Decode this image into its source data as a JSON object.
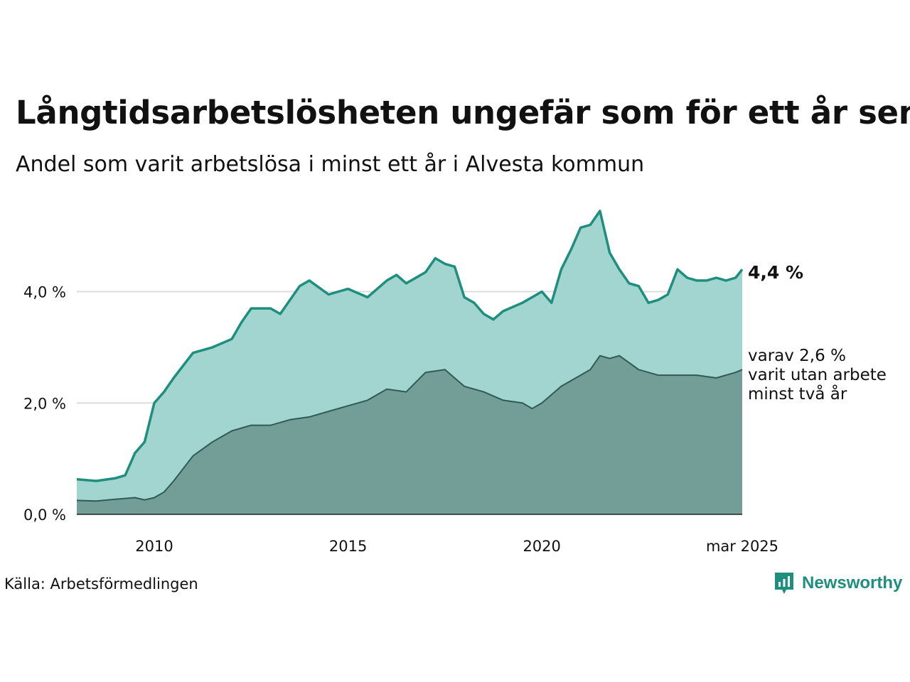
{
  "header": {
    "title": "Långtidsarbetslösheten ungefär som för ett år sen",
    "subtitle": "Andel som varit arbetslösa i minst ett år i Alvesta kommun"
  },
  "footer": {
    "source": "Källa: Arbetsförmedlingen",
    "brand": "Newsworthy"
  },
  "annotations": {
    "latest_value": "4,4 %",
    "sub_note": [
      "varav 2,6 %",
      "varit utan arbete",
      "minst två år"
    ]
  },
  "colors": {
    "one_year_line": "#1e8e7e",
    "one_year_fill": "#a3d5d0",
    "two_year_line": "#2f5b53",
    "two_year_fill": "#729e97",
    "grid": "#dddddd",
    "brand": "#1e8e7e"
  },
  "chart_data": {
    "type": "area",
    "x_range": [
      2008.0,
      2025.17
    ],
    "ylim": [
      0,
      5.5
    ],
    "y_ticks": [
      0,
      2,
      4
    ],
    "y_tick_labels": [
      "0,0 %",
      "2,0 %",
      "4,0 %"
    ],
    "x_ticks": [
      2010,
      2015,
      2020,
      2025.17
    ],
    "x_tick_labels": [
      "2010",
      "2015",
      "2020",
      "mar 2025"
    ],
    "grid": "horizontal",
    "series": [
      {
        "key": "one_year",
        "x": [
          2008.0,
          2008.5,
          2009.0,
          2009.25,
          2009.5,
          2009.75,
          2010.0,
          2010.25,
          2010.5,
          2011.0,
          2011.5,
          2012.0,
          2012.25,
          2012.5,
          2013.0,
          2013.25,
          2013.75,
          2014.0,
          2014.5,
          2015.0,
          2015.5,
          2016.0,
          2016.25,
          2016.5,
          2017.0,
          2017.25,
          2017.5,
          2017.75,
          2018.0,
          2018.25,
          2018.5,
          2018.75,
          2019.0,
          2019.5,
          2020.0,
          2020.25,
          2020.5,
          2020.75,
          2021.0,
          2021.25,
          2021.5,
          2021.75,
          2022.0,
          2022.25,
          2022.5,
          2022.75,
          2023.0,
          2023.25,
          2023.5,
          2023.75,
          2024.0,
          2024.25,
          2024.5,
          2024.75,
          2025.0,
          2025.17
        ],
        "values": [
          0.63,
          0.6,
          0.65,
          0.7,
          1.1,
          1.3,
          2.0,
          2.2,
          2.45,
          2.9,
          3.0,
          3.15,
          3.45,
          3.7,
          3.7,
          3.6,
          4.1,
          4.2,
          3.95,
          4.05,
          3.9,
          4.2,
          4.3,
          4.15,
          4.35,
          4.6,
          4.5,
          4.45,
          3.9,
          3.8,
          3.6,
          3.5,
          3.65,
          3.8,
          4.0,
          3.8,
          4.4,
          4.75,
          5.15,
          5.2,
          5.45,
          4.7,
          4.4,
          4.15,
          4.1,
          3.8,
          3.85,
          3.95,
          4.4,
          4.25,
          4.2,
          4.2,
          4.25,
          4.2,
          4.25,
          4.4
        ]
      },
      {
        "key": "two_years",
        "x": [
          2008.0,
          2008.5,
          2009.0,
          2009.5,
          2009.75,
          2010.0,
          2010.25,
          2010.5,
          2011.0,
          2011.5,
          2012.0,
          2012.5,
          2013.0,
          2013.5,
          2014.0,
          2014.5,
          2015.0,
          2015.5,
          2016.0,
          2016.5,
          2017.0,
          2017.5,
          2018.0,
          2018.5,
          2019.0,
          2019.5,
          2019.75,
          2020.0,
          2020.5,
          2021.0,
          2021.25,
          2021.5,
          2021.75,
          2022.0,
          2022.5,
          2023.0,
          2023.5,
          2024.0,
          2024.5,
          2025.0,
          2025.17
        ],
        "values": [
          0.25,
          0.24,
          0.27,
          0.3,
          0.26,
          0.3,
          0.4,
          0.6,
          1.05,
          1.3,
          1.5,
          1.6,
          1.6,
          1.7,
          1.75,
          1.85,
          1.95,
          2.05,
          2.25,
          2.2,
          2.55,
          2.6,
          2.3,
          2.2,
          2.05,
          2.0,
          1.9,
          2.0,
          2.3,
          2.5,
          2.6,
          2.85,
          2.8,
          2.85,
          2.6,
          2.5,
          2.5,
          2.5,
          2.45,
          2.55,
          2.6
        ]
      }
    ]
  }
}
